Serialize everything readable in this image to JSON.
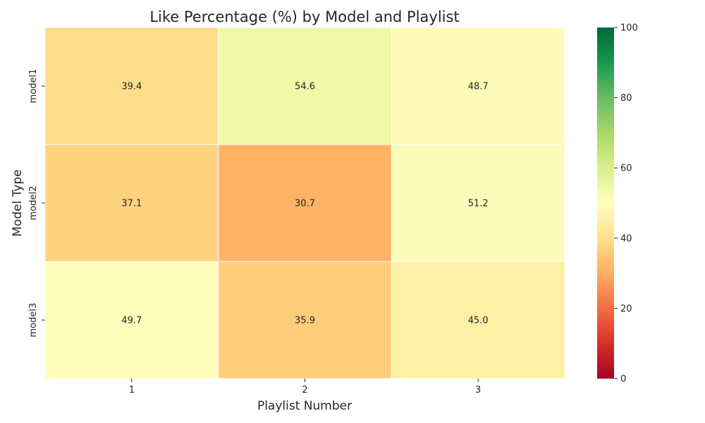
{
  "chart_data": {
    "type": "heatmap",
    "title": "Like Percentage (%) by Model and Playlist",
    "xlabel": "Playlist Number",
    "ylabel": "Model Type",
    "x_categories": [
      "1",
      "2",
      "3"
    ],
    "y_categories": [
      "model1",
      "model2",
      "model3"
    ],
    "values": [
      [
        39.4,
        54.6,
        48.7
      ],
      [
        37.1,
        30.7,
        51.2
      ],
      [
        49.7,
        35.9,
        45.0
      ]
    ],
    "value_labels": [
      [
        "39.4",
        "54.6",
        "48.7"
      ],
      [
        "37.1",
        "30.7",
        "51.2"
      ],
      [
        "49.7",
        "35.9",
        "45.0"
      ]
    ],
    "colorbar": {
      "range": [
        0,
        100
      ],
      "ticks": [
        "0",
        "20",
        "40",
        "60",
        "80",
        "100"
      ],
      "colormap": "RdYlGn",
      "colors": [
        "#a50026",
        "#d73027",
        "#f46d43",
        "#fdae61",
        "#fee08b",
        "#ffffbf",
        "#d9ef8b",
        "#a6d96a",
        "#66bd63",
        "#1a9850",
        "#006837"
      ]
    },
    "grid": false,
    "cell_border_color": "#ffffff"
  }
}
